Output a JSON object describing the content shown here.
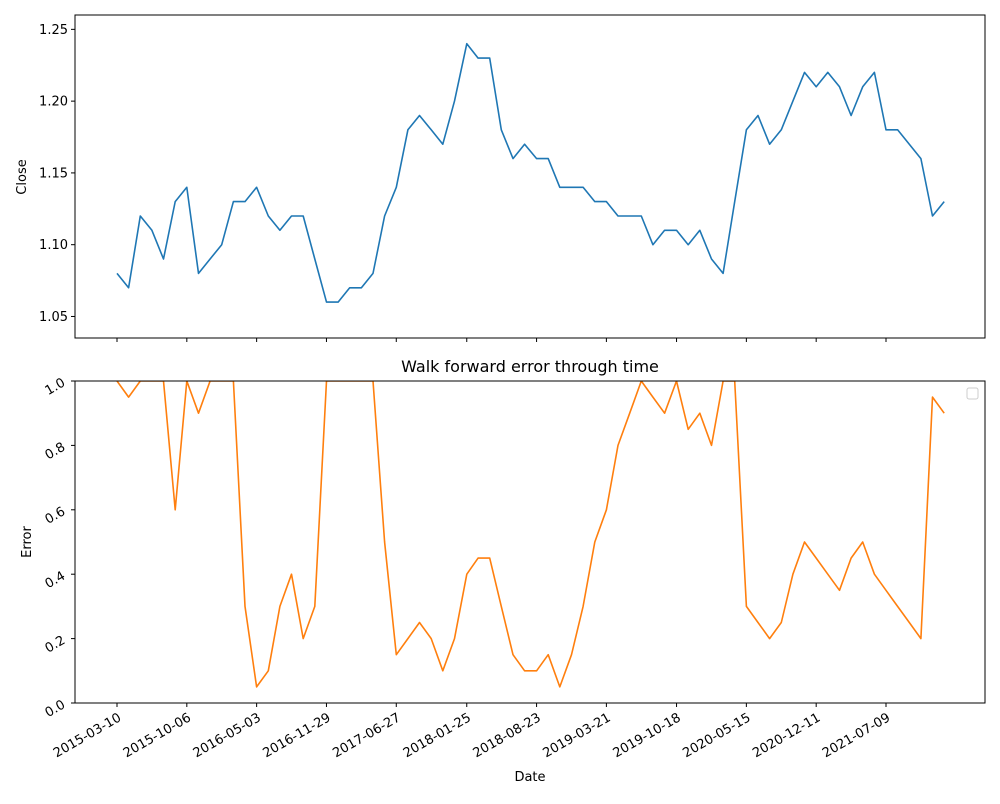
{
  "chart_data": [
    {
      "type": "line",
      "title": "",
      "xlabel": "",
      "ylabel": "Close",
      "ylim": [
        1.035,
        1.26
      ],
      "yticks": [
        "1.05",
        "1.10",
        "1.15",
        "1.20",
        "1.25"
      ],
      "grid": false,
      "colors": {
        "line": "#1f77b4"
      },
      "series": [
        {
          "x": [
            "2015-03-10",
            "2015-04-14",
            "2015-05-19",
            "2015-06-23",
            "2015-07-28",
            "2015-09-01",
            "2015-10-06",
            "2015-11-10",
            "2015-12-15",
            "2016-01-19",
            "2016-02-23",
            "2016-03-29",
            "2016-05-03",
            "2016-06-07",
            "2016-07-12",
            "2016-08-16",
            "2016-09-20",
            "2016-10-25",
            "2016-11-29",
            "2017-01-03",
            "2017-02-07",
            "2017-03-14",
            "2017-04-18",
            "2017-05-23",
            "2017-06-27",
            "2017-08-01",
            "2017-09-05",
            "2017-10-10",
            "2017-11-14",
            "2017-12-19",
            "2018-01-25",
            "2018-02-28",
            "2018-04-04",
            "2018-05-09",
            "2018-06-13",
            "2018-07-18",
            "2018-08-23",
            "2018-09-27",
            "2018-11-01",
            "2018-12-06",
            "2019-01-10",
            "2019-02-14",
            "2019-03-21",
            "2019-04-25",
            "2019-05-30",
            "2019-07-04",
            "2019-08-08",
            "2019-09-12",
            "2019-10-18",
            "2019-11-22",
            "2019-12-27",
            "2020-01-31",
            "2020-03-06",
            "2020-04-10",
            "2020-05-15",
            "2020-06-19",
            "2020-07-24",
            "2020-08-28",
            "2020-10-02",
            "2020-11-06",
            "2020-12-11",
            "2021-01-15",
            "2021-02-19",
            "2021-03-26",
            "2021-04-30",
            "2021-06-04",
            "2021-07-09",
            "2021-08-13",
            "2021-09-17",
            "2021-10-22",
            "2021-11-26",
            "2021-12-31"
          ],
          "values": [
            1.08,
            1.07,
            1.12,
            1.11,
            1.09,
            1.13,
            1.14,
            1.08,
            1.09,
            1.1,
            1.13,
            1.13,
            1.14,
            1.12,
            1.11,
            1.12,
            1.12,
            1.09,
            1.06,
            1.06,
            1.07,
            1.07,
            1.08,
            1.12,
            1.14,
            1.18,
            1.19,
            1.18,
            1.17,
            1.2,
            1.24,
            1.23,
            1.23,
            1.18,
            1.16,
            1.17,
            1.16,
            1.16,
            1.14,
            1.14,
            1.14,
            1.13,
            1.13,
            1.12,
            1.12,
            1.12,
            1.1,
            1.11,
            1.11,
            1.1,
            1.11,
            1.09,
            1.08,
            1.13,
            1.18,
            1.19,
            1.17,
            1.18,
            1.2,
            1.22,
            1.21,
            1.22,
            1.21,
            1.19,
            1.21,
            1.22,
            1.18,
            1.18,
            1.17,
            1.16,
            1.12,
            1.13
          ]
        }
      ]
    },
    {
      "type": "line",
      "title": "Walk forward error through time",
      "xlabel": "Date",
      "ylabel": "Error",
      "ylim": [
        0.0,
        1.0
      ],
      "yticks": [
        "0.0",
        "0.2",
        "0.4",
        "0.6",
        "0.8",
        "1.0"
      ],
      "xticks": [
        "2015-03-10",
        "2015-10-06",
        "2016-05-03",
        "2016-11-29",
        "2017-06-27",
        "2018-01-25",
        "2018-08-23",
        "2019-03-21",
        "2019-10-18",
        "2020-05-15",
        "2020-12-11",
        "2021-07-09"
      ],
      "legend": "top-right",
      "grid": false,
      "colors": {
        "line": "#ff7f0e"
      },
      "series": [
        {
          "x": [
            "2015-03-10",
            "2015-04-14",
            "2015-05-19",
            "2015-06-23",
            "2015-07-28",
            "2015-09-01",
            "2015-10-06",
            "2015-11-10",
            "2015-12-15",
            "2016-01-19",
            "2016-02-23",
            "2016-03-29",
            "2016-05-03",
            "2016-06-07",
            "2016-07-12",
            "2016-08-16",
            "2016-09-20",
            "2016-10-25",
            "2016-11-29",
            "2017-01-03",
            "2017-02-07",
            "2017-03-14",
            "2017-04-18",
            "2017-05-23",
            "2017-06-27",
            "2017-08-01",
            "2017-09-05",
            "2017-10-10",
            "2017-11-14",
            "2017-12-19",
            "2018-01-25",
            "2018-02-28",
            "2018-04-04",
            "2018-05-09",
            "2018-06-13",
            "2018-07-18",
            "2018-08-23",
            "2018-09-27",
            "2018-11-01",
            "2018-12-06",
            "2019-01-10",
            "2019-02-14",
            "2019-03-21",
            "2019-04-25",
            "2019-05-30",
            "2019-07-04",
            "2019-08-08",
            "2019-09-12",
            "2019-10-18",
            "2019-11-22",
            "2019-12-27",
            "2020-01-31",
            "2020-03-06",
            "2020-04-10",
            "2020-05-15",
            "2020-06-19",
            "2020-07-24",
            "2020-08-28",
            "2020-10-02",
            "2020-11-06",
            "2020-12-11",
            "2021-01-15",
            "2021-02-19",
            "2021-03-26",
            "2021-04-30",
            "2021-06-04",
            "2021-07-09",
            "2021-08-13",
            "2021-09-17",
            "2021-10-22",
            "2021-11-26",
            "2021-12-31"
          ],
          "values": [
            1.0,
            0.95,
            1.0,
            1.0,
            1.0,
            0.6,
            1.0,
            0.9,
            1.0,
            1.0,
            1.0,
            0.3,
            0.05,
            0.1,
            0.3,
            0.4,
            0.2,
            0.3,
            1.0,
            1.0,
            1.0,
            1.0,
            1.0,
            0.5,
            0.15,
            0.2,
            0.25,
            0.2,
            0.1,
            0.2,
            0.4,
            0.45,
            0.45,
            0.3,
            0.15,
            0.1,
            0.1,
            0.15,
            0.05,
            0.15,
            0.3,
            0.5,
            0.6,
            0.8,
            0.9,
            1.0,
            0.95,
            0.9,
            1.0,
            0.85,
            0.9,
            0.8,
            1.0,
            1.0,
            0.3,
            0.25,
            0.2,
            0.25,
            0.4,
            0.5,
            0.45,
            0.4,
            0.35,
            0.45,
            0.5,
            0.4,
            0.35,
            0.3,
            0.25,
            0.2,
            0.95,
            0.9
          ]
        }
      ]
    }
  ]
}
